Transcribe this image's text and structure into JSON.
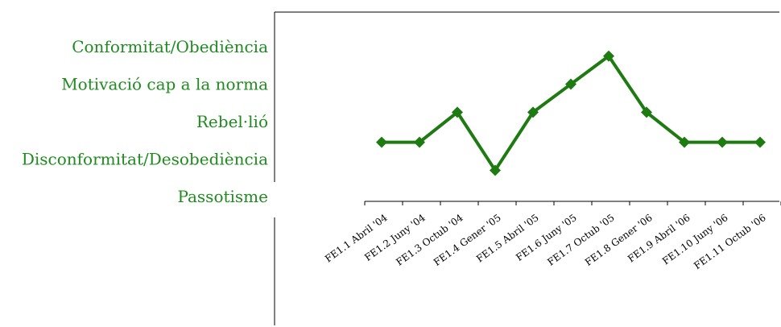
{
  "chart_data": {
    "type": "line",
    "title": "",
    "xlabel": "",
    "ylabel": "",
    "y_categories": [
      "Passotisme",
      "Disconformitat/Desobediència",
      "Rebel·lió",
      "Motivació cap a la norma",
      "Conformitat/Obediència"
    ],
    "categories": [
      "FE1.1 Abril '04",
      "FE1.2 Juny '04",
      "FE1.3 Octub '04",
      "FE1.4 Gener '05",
      "FE1.5 Abril '05",
      "FE1.6 Juny '05",
      "FE1.7 Octub '05",
      "FE1.8 Gener '06",
      "FE1.9 Abril '06",
      "FE1.10 Juny '06",
      "FE1.11 Octub '06"
    ],
    "series": [
      {
        "values": [
          1.45,
          1.45,
          2.25,
          0.7,
          2.25,
          3.0,
          3.75,
          2.25,
          1.45,
          1.45,
          1.45
        ],
        "color": "#1e7b12",
        "marker": "diamond"
      }
    ],
    "ylim": [
      0,
      4
    ],
    "grid": false,
    "legend": "none"
  }
}
